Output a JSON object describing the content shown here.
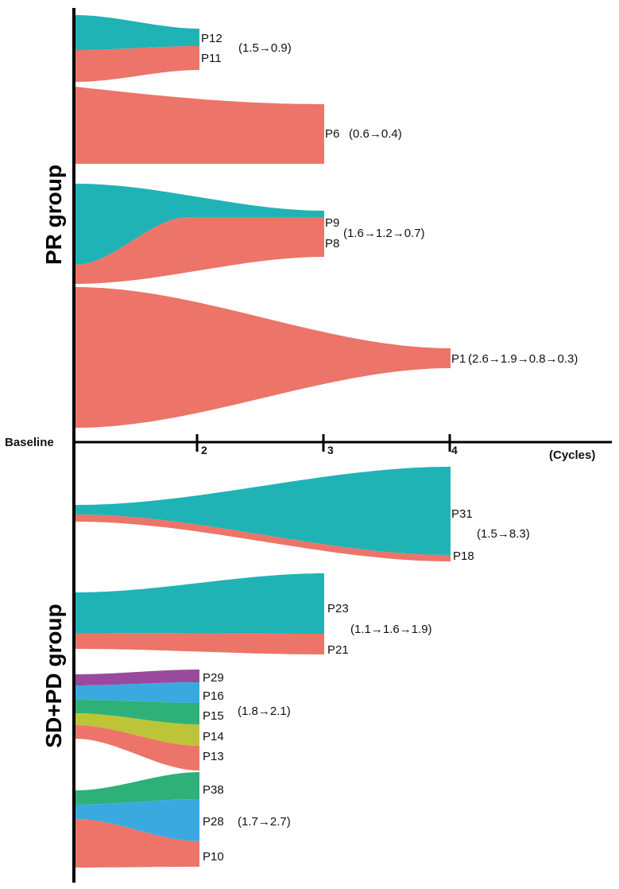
{
  "chart_data": {
    "type": "sankey-stream",
    "colors": {
      "salmon": "#EC7469",
      "teal": "#20B3B5",
      "purple": "#9A4A9E",
      "blue": "#3AA9E0",
      "green": "#2DB178",
      "olive": "#BEC437"
    },
    "axis": {
      "baseline_label": "Baseline",
      "unit_label": "(Cycles)",
      "ticks": [
        "2",
        "3",
        "4"
      ]
    },
    "groups": [
      {
        "id": "pr",
        "title": "PR group"
      },
      {
        "id": "sdpd",
        "title": "SD+PD group"
      }
    ],
    "streams": [
      {
        "patients": [
          "P12",
          "P11"
        ],
        "colors": [
          "teal",
          "salmon"
        ],
        "end_cycle": 2,
        "values": "(1.5→0.9)"
      },
      {
        "patients": [
          "P6"
        ],
        "colors": [
          "salmon"
        ],
        "end_cycle": 3,
        "values": "(0.6→0.4)"
      },
      {
        "patients": [
          "P9",
          "P8"
        ],
        "colors": [
          "teal",
          "salmon"
        ],
        "end_cycle": 3,
        "values": "(1.6→1.2→0.7)"
      },
      {
        "patients": [
          "P1"
        ],
        "colors": [
          "salmon"
        ],
        "end_cycle": 4,
        "values": "(2.6→1.9→0.8→0.3)"
      },
      {
        "patients": [
          "P31",
          "P18"
        ],
        "colors": [
          "teal",
          "salmon"
        ],
        "end_cycle": 4,
        "values": "(1.5→8.3)"
      },
      {
        "patients": [
          "P23",
          "P21"
        ],
        "colors": [
          "teal",
          "salmon"
        ],
        "end_cycle": 3,
        "values": "(1.1→1.6→1.9)"
      },
      {
        "patients": [
          "P29",
          "P16",
          "P15",
          "P14",
          "P13"
        ],
        "colors": [
          "purple",
          "blue",
          "green",
          "olive",
          "salmon"
        ],
        "end_cycle": 2,
        "values": "(1.8→2.1)"
      },
      {
        "patients": [
          "P38",
          "P28",
          "P10"
        ],
        "colors": [
          "green",
          "blue",
          "salmon"
        ],
        "end_cycle": 2,
        "values": "(1.7→2.7)"
      }
    ]
  }
}
